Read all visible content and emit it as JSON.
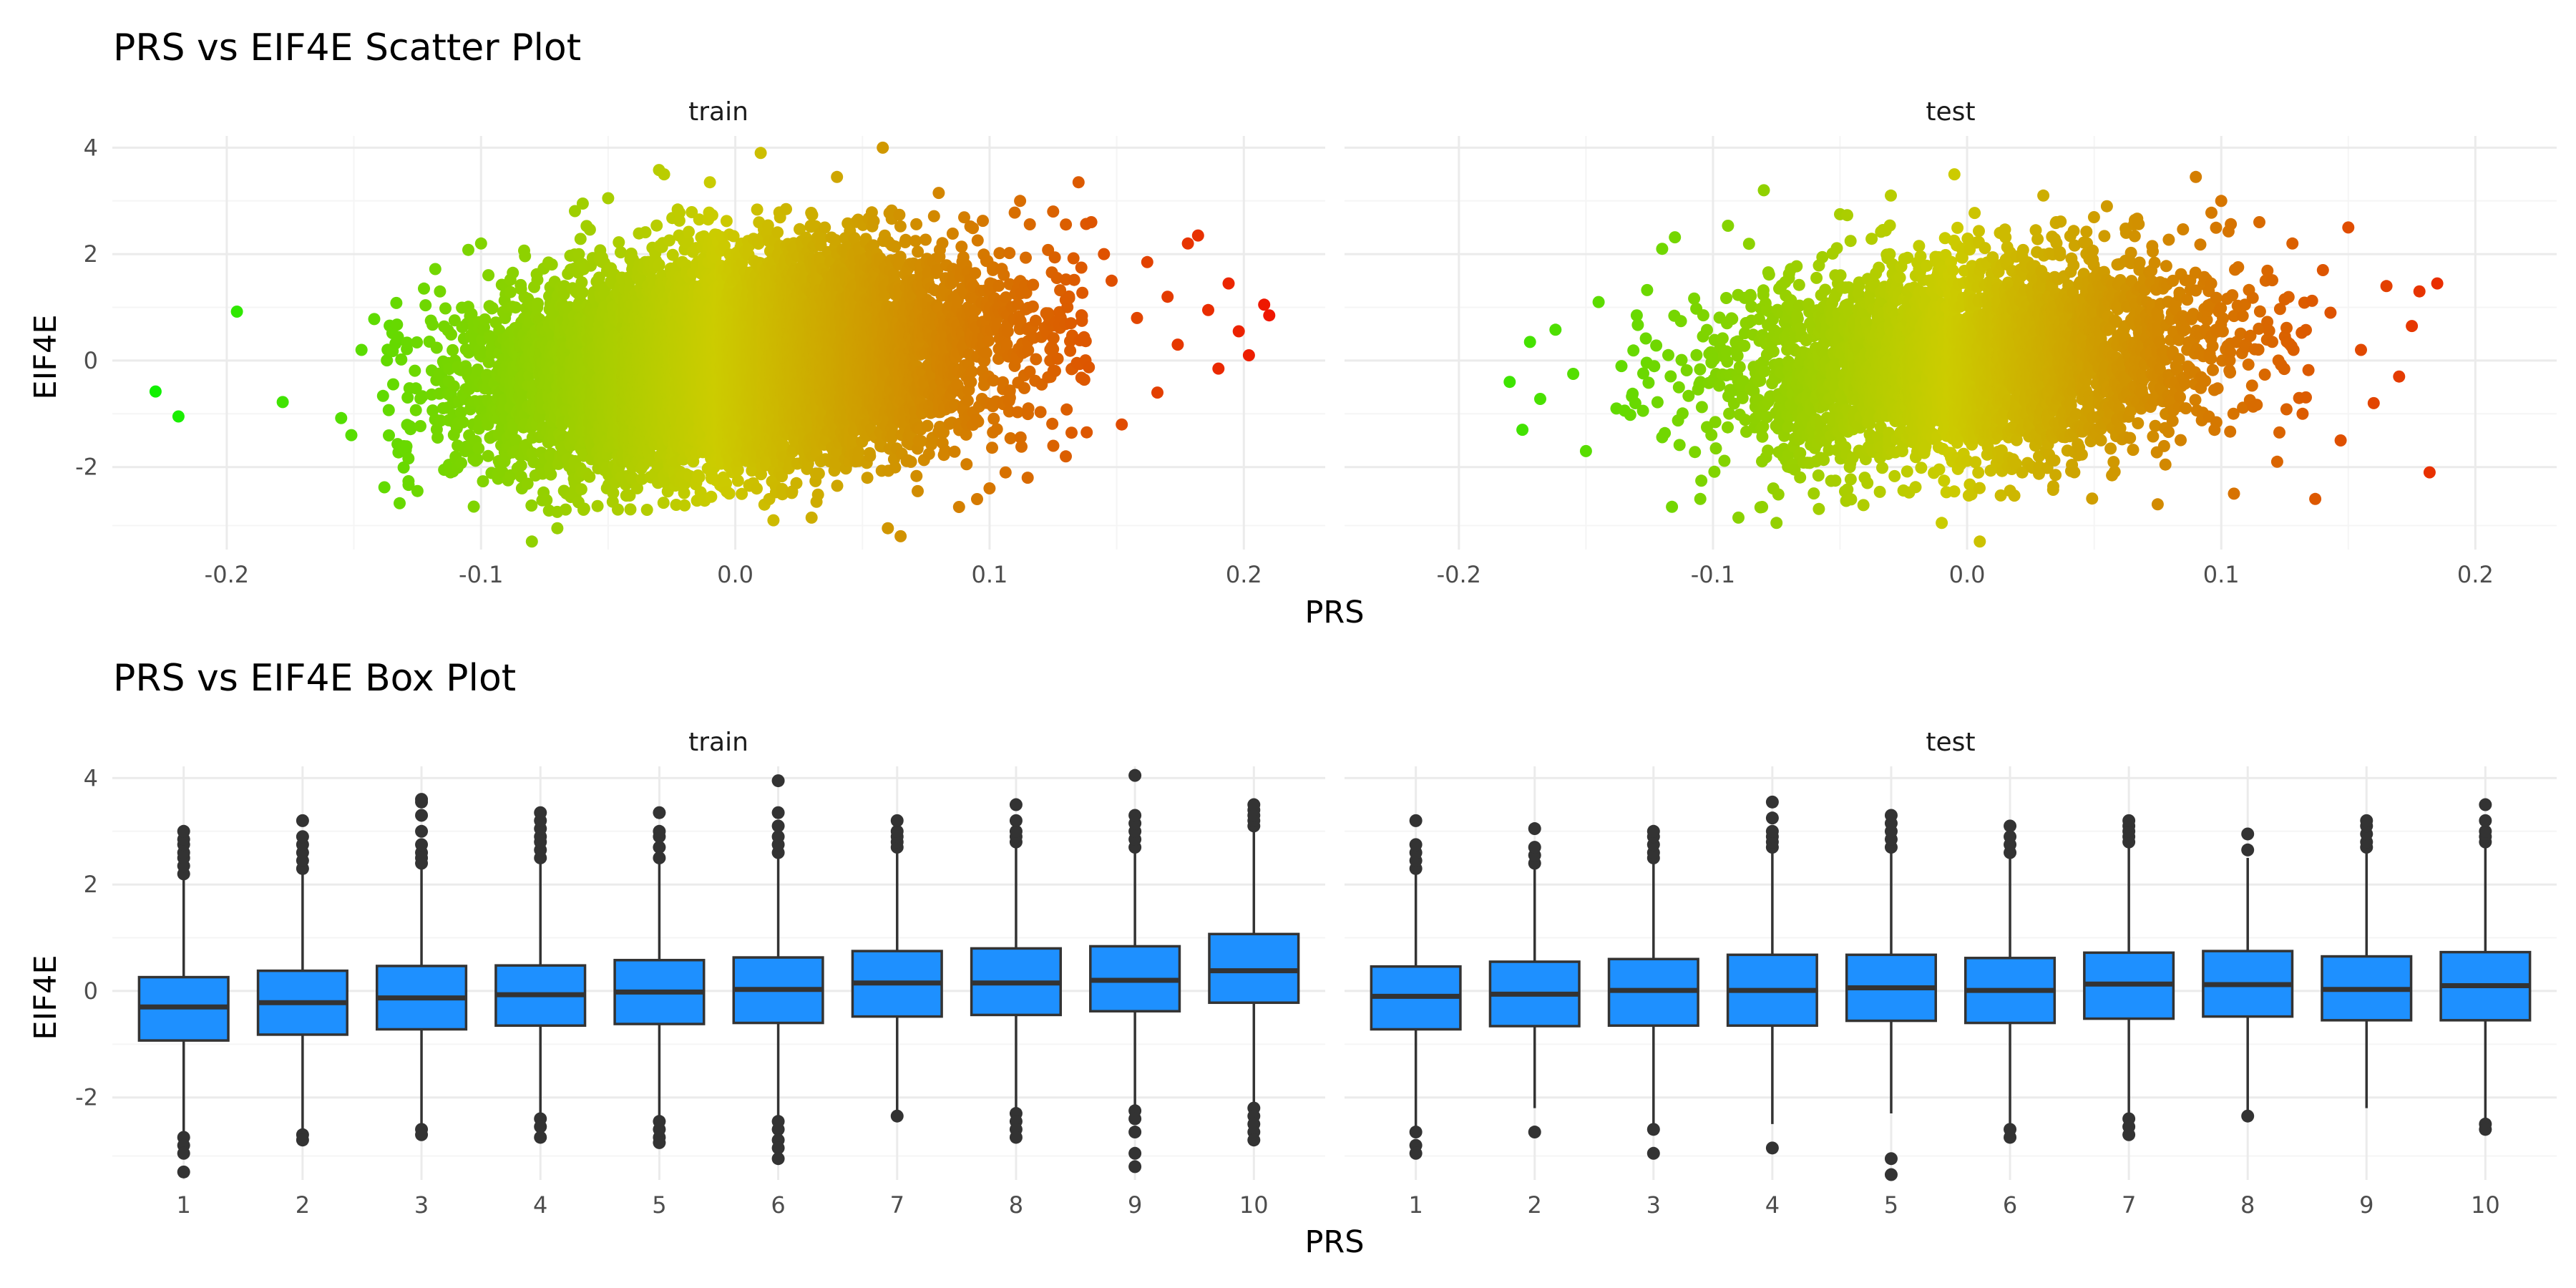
{
  "colors": {
    "grid_major": "#ebebeb",
    "grid_minor": "#f5f5f5",
    "box_fill": "#1e90ff",
    "box_line": "#333333",
    "gradient_low": "#00ff00",
    "gradient_high": "#ff0000"
  },
  "chart_data": [
    {
      "type": "scatter",
      "title": "PRS vs EIF4E Scatter Plot",
      "xlabel": "PRS",
      "ylabel": "EIF4E",
      "color_scale": "PRS value, low = green, high = red",
      "xlim": [
        -0.245,
        0.232
      ],
      "ylim": [
        -3.55,
        4.22
      ],
      "xticks": [
        -0.2,
        -0.1,
        0.0,
        0.1,
        0.2
      ],
      "xtick_labels": [
        "-0.2",
        "-0.1",
        "0.0",
        "0.1",
        "0.2"
      ],
      "yticks": [
        -2,
        0,
        2,
        4
      ],
      "ytick_labels": [
        "-2",
        "0",
        "2",
        "4"
      ],
      "grid": true,
      "panels": [
        {
          "label": "train",
          "cloud": {
            "n": 9000,
            "x_mean": 0.0,
            "x_sd": 0.048,
            "y_mean": 0.0,
            "y_sd": 0.95,
            "correlation": 0.22
          },
          "points": [
            [
              -0.228,
              -0.58
            ],
            [
              -0.219,
              -1.05
            ],
            [
              -0.196,
              0.92
            ],
            [
              -0.178,
              -0.78
            ],
            [
              -0.155,
              -1.08
            ],
            [
              -0.151,
              -1.4
            ],
            [
              -0.147,
              0.2
            ],
            [
              -0.142,
              0.78
            ],
            [
              -0.138,
              -2.38
            ],
            [
              -0.132,
              -2.68
            ],
            [
              -0.125,
              -2.45
            ],
            [
              -0.118,
              1.72
            ],
            [
              -0.112,
              -2.1
            ],
            [
              -0.105,
              2.08
            ],
            [
              -0.1,
              2.2
            ],
            [
              -0.08,
              -3.4
            ],
            [
              -0.07,
              -3.15
            ],
            [
              -0.06,
              2.95
            ],
            [
              -0.05,
              3.05
            ],
            [
              -0.03,
              3.58
            ],
            [
              -0.028,
              3.5
            ],
            [
              -0.01,
              3.35
            ],
            [
              0.01,
              3.9
            ],
            [
              0.015,
              -3.0
            ],
            [
              0.03,
              -2.95
            ],
            [
              0.04,
              3.45
            ],
            [
              0.058,
              4.0
            ],
            [
              0.06,
              -3.15
            ],
            [
              0.065,
              -3.3
            ],
            [
              0.08,
              3.15
            ],
            [
              0.088,
              -2.75
            ],
            [
              0.1,
              -2.4
            ],
            [
              0.112,
              3.0
            ],
            [
              0.115,
              -2.2
            ],
            [
              0.125,
              2.8
            ],
            [
              0.13,
              -1.8
            ],
            [
              0.135,
              3.35
            ],
            [
              0.14,
              2.6
            ],
            [
              0.145,
              2.0
            ],
            [
              0.148,
              1.5
            ],
            [
              0.152,
              -1.2
            ],
            [
              0.158,
              0.8
            ],
            [
              0.162,
              1.85
            ],
            [
              0.166,
              -0.6
            ],
            [
              0.17,
              1.2
            ],
            [
              0.174,
              0.3
            ],
            [
              0.178,
              2.2
            ],
            [
              0.182,
              2.35
            ],
            [
              0.186,
              0.95
            ],
            [
              0.19,
              -0.15
            ],
            [
              0.194,
              1.45
            ],
            [
              0.198,
              0.55
            ],
            [
              0.202,
              0.1
            ],
            [
              0.208,
              1.05
            ],
            [
              0.21,
              0.85
            ]
          ]
        },
        {
          "label": "test",
          "cloud": {
            "n": 3800,
            "x_mean": 0.0,
            "x_sd": 0.047,
            "y_mean": 0.0,
            "y_sd": 0.93,
            "correlation": 0.18
          },
          "points": [
            [
              -0.18,
              -0.4
            ],
            [
              -0.175,
              -1.3
            ],
            [
              -0.172,
              0.35
            ],
            [
              -0.168,
              -0.72
            ],
            [
              -0.162,
              0.58
            ],
            [
              -0.155,
              -0.25
            ],
            [
              -0.15,
              -1.7
            ],
            [
              -0.145,
              1.1
            ],
            [
              -0.138,
              -0.9
            ],
            [
              -0.13,
              0.85
            ],
            [
              -0.12,
              2.1
            ],
            [
              -0.105,
              -2.6
            ],
            [
              -0.09,
              -2.95
            ],
            [
              -0.08,
              3.2
            ],
            [
              -0.075,
              -3.05
            ],
            [
              -0.05,
              2.75
            ],
            [
              -0.03,
              3.1
            ],
            [
              -0.01,
              -3.05
            ],
            [
              -0.005,
              3.5
            ],
            [
              0.005,
              -3.4
            ],
            [
              0.03,
              3.1
            ],
            [
              0.055,
              2.9
            ],
            [
              0.075,
              -2.7
            ],
            [
              0.09,
              3.45
            ],
            [
              0.1,
              3.0
            ],
            [
              0.105,
              -2.5
            ],
            [
              0.115,
              2.6
            ],
            [
              0.122,
              -1.9
            ],
            [
              0.128,
              2.2
            ],
            [
              0.132,
              -1.0
            ],
            [
              0.137,
              -2.6
            ],
            [
              0.14,
              1.7
            ],
            [
              0.143,
              0.9
            ],
            [
              0.147,
              -1.5
            ],
            [
              0.15,
              2.5
            ],
            [
              0.155,
              0.2
            ],
            [
              0.16,
              -0.8
            ],
            [
              0.165,
              1.4
            ],
            [
              0.17,
              -0.3
            ],
            [
              0.175,
              0.65
            ],
            [
              0.178,
              1.3
            ],
            [
              0.182,
              -2.1
            ],
            [
              0.185,
              1.45
            ]
          ]
        }
      ]
    },
    {
      "type": "box",
      "title": "PRS vs EIF4E Box Plot",
      "xlabel": "PRS",
      "ylabel": "EIF4E",
      "categories": [
        "1",
        "2",
        "3",
        "4",
        "5",
        "6",
        "7",
        "8",
        "9",
        "10"
      ],
      "ylim": [
        -3.55,
        4.22
      ],
      "yticks": [
        -2,
        0,
        2,
        4
      ],
      "ytick_labels": [
        "-2",
        "0",
        "2",
        "4"
      ],
      "grid": true,
      "panels": [
        {
          "label": "train",
          "boxes": [
            {
              "q1": -0.93,
              "median": -0.3,
              "q3": 0.26,
              "lower": -2.7,
              "upper": 2.1,
              "outliers": [
                2.2,
                2.35,
                2.5,
                2.6,
                2.75,
                2.85,
                3.0,
                -2.75,
                -2.9,
                -3.05,
                -3.4
              ]
            },
            {
              "q1": -0.82,
              "median": -0.22,
              "q3": 0.38,
              "lower": -2.6,
              "upper": 2.2,
              "outliers": [
                2.3,
                2.45,
                2.6,
                2.75,
                2.9,
                3.2,
                -2.7,
                -2.8
              ]
            },
            {
              "q1": -0.72,
              "median": -0.13,
              "q3": 0.47,
              "lower": -2.5,
              "upper": 2.3,
              "outliers": [
                2.4,
                2.5,
                2.6,
                2.75,
                3.0,
                3.3,
                3.55,
                3.6,
                -2.6,
                -2.7
              ]
            },
            {
              "q1": -0.65,
              "median": -0.07,
              "q3": 0.48,
              "lower": -2.3,
              "upper": 2.4,
              "outliers": [
                2.5,
                2.65,
                2.8,
                2.9,
                3.05,
                3.2,
                3.35,
                -2.4,
                -2.55,
                -2.75
              ]
            },
            {
              "q1": -0.62,
              "median": -0.02,
              "q3": 0.58,
              "lower": -2.4,
              "upper": 2.4,
              "outliers": [
                2.5,
                2.7,
                2.9,
                3.0,
                3.35,
                -2.45,
                -2.6,
                -2.75,
                -2.85
              ]
            },
            {
              "q1": -0.6,
              "median": 0.03,
              "q3": 0.63,
              "lower": -2.4,
              "upper": 2.5,
              "outliers": [
                2.6,
                2.75,
                2.9,
                3.1,
                3.35,
                3.95,
                -2.45,
                -2.6,
                -2.8,
                -2.95,
                -3.15
              ]
            },
            {
              "q1": -0.48,
              "median": 0.15,
              "q3": 0.75,
              "lower": -2.3,
              "upper": 2.6,
              "outliers": [
                2.7,
                2.8,
                2.9,
                3.0,
                3.2,
                -2.35
              ]
            },
            {
              "q1": -0.45,
              "median": 0.15,
              "q3": 0.8,
              "lower": -2.2,
              "upper": 2.7,
              "outliers": [
                2.8,
                2.9,
                3.0,
                3.2,
                3.5,
                -2.3,
                -2.45,
                -2.6,
                -2.75
              ]
            },
            {
              "q1": -0.38,
              "median": 0.2,
              "q3": 0.84,
              "lower": -2.2,
              "upper": 2.6,
              "outliers": [
                2.7,
                2.85,
                3.0,
                3.15,
                3.3,
                4.05,
                -2.25,
                -2.4,
                -2.65,
                -3.05,
                -3.3
              ]
            },
            {
              "q1": -0.22,
              "median": 0.38,
              "q3": 1.07,
              "lower": -2.1,
              "upper": 3.0,
              "outliers": [
                3.1,
                3.2,
                3.3,
                3.4,
                3.5,
                -2.2,
                -2.35,
                -2.5,
                -2.65,
                -2.8
              ]
            }
          ]
        },
        {
          "label": "test",
          "boxes": [
            {
              "q1": -0.72,
              "median": -0.1,
              "q3": 0.46,
              "lower": -2.6,
              "upper": 2.2,
              "outliers": [
                2.3,
                2.45,
                2.6,
                2.75,
                3.2,
                -2.65,
                -2.9,
                -3.05
              ]
            },
            {
              "q1": -0.66,
              "median": -0.06,
              "q3": 0.55,
              "lower": -2.2,
              "upper": 2.3,
              "outliers": [
                2.4,
                2.55,
                2.7,
                3.05,
                -2.65
              ]
            },
            {
              "q1": -0.65,
              "median": 0.01,
              "q3": 0.6,
              "lower": -2.5,
              "upper": 2.4,
              "outliers": [
                2.5,
                2.6,
                2.75,
                2.9,
                3.0,
                -2.6,
                -3.05
              ]
            },
            {
              "q1": -0.65,
              "median": 0.01,
              "q3": 0.68,
              "lower": -2.5,
              "upper": 2.6,
              "outliers": [
                2.7,
                2.8,
                2.9,
                3.0,
                3.25,
                3.55,
                -2.95
              ]
            },
            {
              "q1": -0.56,
              "median": 0.06,
              "q3": 0.68,
              "lower": -2.3,
              "upper": 2.6,
              "outliers": [
                2.7,
                2.85,
                3.0,
                3.15,
                3.3,
                -3.15,
                -3.45
              ]
            },
            {
              "q1": -0.6,
              "median": 0.01,
              "q3": 0.62,
              "lower": -2.5,
              "upper": 2.5,
              "outliers": [
                2.6,
                2.75,
                2.9,
                3.1,
                -2.6,
                -2.75
              ]
            },
            {
              "q1": -0.52,
              "median": 0.13,
              "q3": 0.72,
              "lower": -2.3,
              "upper": 2.7,
              "outliers": [
                2.8,
                2.9,
                3.0,
                3.1,
                3.2,
                -2.4,
                -2.55,
                -2.7
              ]
            },
            {
              "q1": -0.48,
              "median": 0.12,
              "q3": 0.75,
              "lower": -2.3,
              "upper": 2.5,
              "outliers": [
                2.65,
                2.95,
                -2.35
              ]
            },
            {
              "q1": -0.55,
              "median": 0.03,
              "q3": 0.65,
              "lower": -2.2,
              "upper": 2.6,
              "outliers": [
                2.7,
                2.8,
                2.95,
                3.1,
                3.2
              ]
            },
            {
              "q1": -0.55,
              "median": 0.1,
              "q3": 0.73,
              "lower": -2.5,
              "upper": 2.7,
              "outliers": [
                2.8,
                2.9,
                3.0,
                3.2,
                3.5,
                -2.5,
                -2.6
              ]
            }
          ]
        }
      ]
    }
  ]
}
